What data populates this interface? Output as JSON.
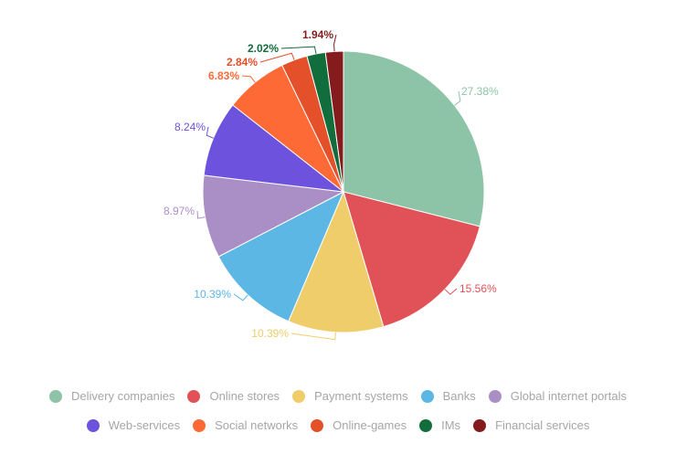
{
  "chart_data": {
    "type": "pie",
    "unit": "%",
    "categories": [
      "Delivery companies",
      "Online stores",
      "Payment systems",
      "Banks",
      "Global internet portals",
      "Web-services",
      "Social networks",
      "Online-games",
      "IMs",
      "Financial services"
    ],
    "values": [
      27.38,
      15.56,
      10.39,
      10.39,
      8.97,
      8.24,
      6.83,
      2.84,
      2.02,
      1.94
    ],
    "labels": [
      "27.38%",
      "15.56%",
      "10.39%",
      "10.39%",
      "8.97%",
      "8.24%",
      "6.83%",
      "2.84%",
      "2.02%",
      "1.94%"
    ],
    "colors": [
      "#8dc3a7",
      "#e15258",
      "#f0cd6b",
      "#5db7e5",
      "#aa8fc7",
      "#6d52dd",
      "#fe6a35",
      "#e4502a",
      "#116d3c",
      "#841c1e"
    ],
    "legend_placement": "bottom",
    "start_angle": "12 o'clock, clockwise"
  }
}
